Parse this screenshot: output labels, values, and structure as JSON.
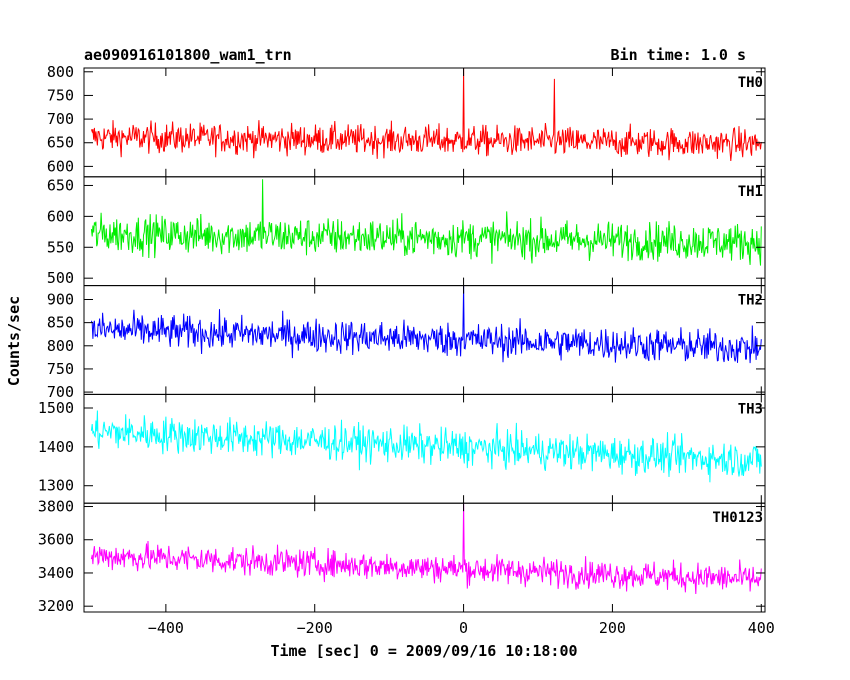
{
  "chart_data": {
    "type": "line",
    "title": "ae090916101800_wam1_trn",
    "bin_time_label": "Bin time: 1.0 s",
    "xlabel": "Time [sec] 0 = 2009/09/16 10:18:00",
    "ylabel": "Counts/sec",
    "xlim": [
      -510,
      405
    ],
    "x_ticks": [
      -400,
      -200,
      0,
      200,
      400
    ],
    "x_tick_labels": [
      "−400",
      "−200",
      "0",
      "200",
      "400"
    ],
    "x_start": -500,
    "x_end": 400,
    "bin_time": 1.0,
    "grid": false,
    "series": [
      {
        "name": "TH0",
        "color": "#ff0000",
        "ylim": [
          578,
          808
        ],
        "y_ticks": [
          600,
          650,
          700,
          750,
          800
        ],
        "y_tick_labels": [
          "600",
          "650",
          "700",
          "750",
          "800"
        ],
        "level_start": 662,
        "level_end": 648,
        "noise": 26,
        "spikes": [
          {
            "x": 0,
            "y": 808
          },
          {
            "x": 122,
            "y": 785
          }
        ]
      },
      {
        "name": "TH1",
        "color": "#00ee00",
        "ylim": [
          488,
          664
        ],
        "y_ticks": [
          500,
          550,
          600,
          650
        ],
        "y_tick_labels": [
          "500",
          "550",
          "600",
          "650"
        ],
        "level_start": 572,
        "level_end": 558,
        "noise": 25,
        "spikes": [
          {
            "x": -270,
            "y": 660
          }
        ]
      },
      {
        "name": "TH2",
        "color": "#0000ff",
        "ylim": [
          695,
          930
        ],
        "y_ticks": [
          700,
          750,
          800,
          850,
          900
        ],
        "y_tick_labels": [
          "700",
          "750",
          "800",
          "850",
          "900"
        ],
        "level_start": 835,
        "level_end": 795,
        "noise": 30,
        "spikes": [
          {
            "x": 0,
            "y": 930
          }
        ]
      },
      {
        "name": "TH3",
        "color": "#00ffff",
        "ylim": [
          1255,
          1535
        ],
        "y_ticks": [
          1300,
          1400,
          1500
        ],
        "y_tick_labels": [
          "1300",
          "1400",
          "1500"
        ],
        "level_start": 1440,
        "level_end": 1365,
        "noise": 38,
        "spikes": []
      },
      {
        "name": "TH0123",
        "color": "#ff00ff",
        "ylim": [
          3165,
          3820
        ],
        "y_ticks": [
          3200,
          3400,
          3600,
          3800
        ],
        "y_tick_labels": [
          "3200",
          "3400",
          "3600",
          "3800"
        ],
        "level_start": 3505,
        "level_end": 3360,
        "noise": 70,
        "spikes": [
          {
            "x": 0,
            "y": 3820
          }
        ]
      }
    ]
  }
}
